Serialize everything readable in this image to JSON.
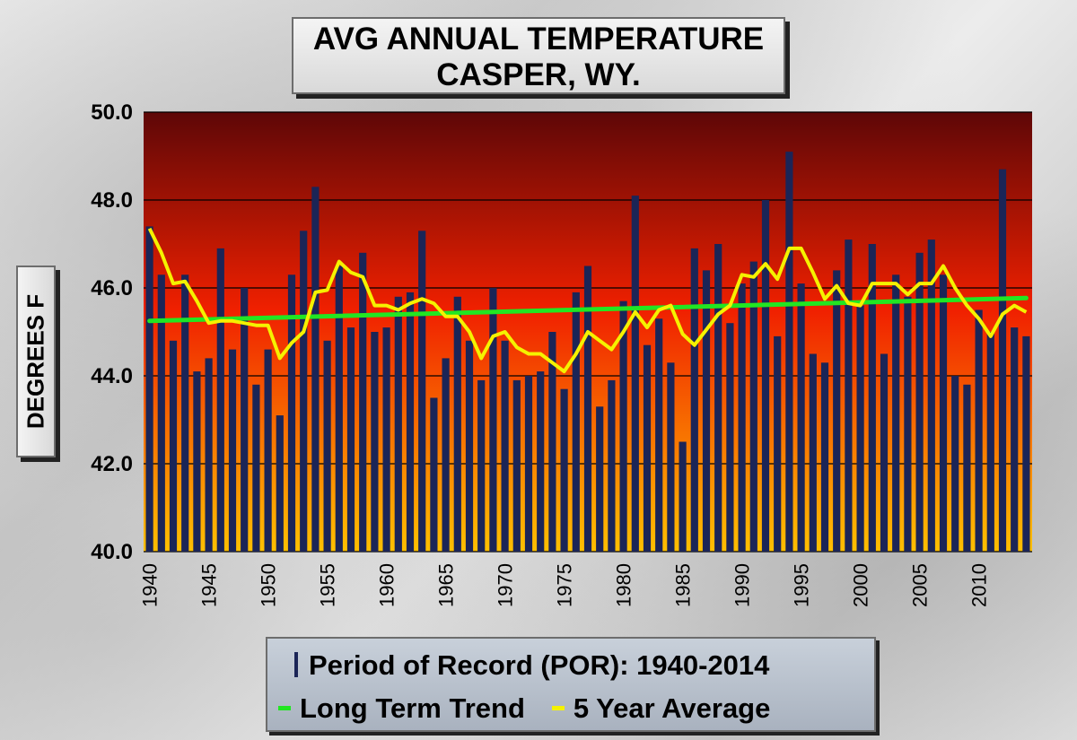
{
  "title": {
    "line1": "AVG ANNUAL  TEMPERATURE",
    "line2": "CASPER, WY."
  },
  "colors": {
    "bar": "#1b2557",
    "trend": "#22e622",
    "avg": "#f5f200",
    "plot_top": "#5e0707",
    "plot_mid": "#f02000",
    "plot_bottom": "#ffc000"
  },
  "legend": {
    "bars": "Period of Record (POR):  1940-2014",
    "trend": "Long Term  Trend",
    "avg": "5 Year Average"
  },
  "chart_data": {
    "type": "bar",
    "title": "AVG ANNUAL  TEMPERATURE CASPER, WY.",
    "ylabel": "DEGREES F",
    "xlabel": "",
    "ylim": [
      40,
      50
    ],
    "yticks": [
      "40.0",
      "42.0",
      "44.0",
      "46.0",
      "48.0",
      "50.0"
    ],
    "xticks": [
      "1940",
      "1945",
      "1950",
      "1955",
      "1960",
      "1965",
      "1970",
      "1975",
      "1980",
      "1985",
      "1990",
      "1995",
      "2000",
      "2005",
      "2010"
    ],
    "grid": true,
    "legend_position": "bottom",
    "x": [
      1940,
      1941,
      1942,
      1943,
      1944,
      1945,
      1946,
      1947,
      1948,
      1949,
      1950,
      1951,
      1952,
      1953,
      1954,
      1955,
      1956,
      1957,
      1958,
      1959,
      1960,
      1961,
      1962,
      1963,
      1964,
      1965,
      1966,
      1967,
      1968,
      1969,
      1970,
      1971,
      1972,
      1973,
      1974,
      1975,
      1976,
      1977,
      1978,
      1979,
      1980,
      1981,
      1982,
      1983,
      1984,
      1985,
      1986,
      1987,
      1988,
      1989,
      1990,
      1991,
      1992,
      1993,
      1994,
      1995,
      1996,
      1997,
      1998,
      1999,
      2000,
      2001,
      2002,
      2003,
      2004,
      2005,
      2006,
      2007,
      2008,
      2009,
      2010,
      2011,
      2012,
      2013,
      2014
    ],
    "series": [
      {
        "name": "Period of Record (POR):  1940-2014",
        "type": "bar",
        "values": [
          47.4,
          46.3,
          44.8,
          46.3,
          44.1,
          44.4,
          46.9,
          44.6,
          46.0,
          43.8,
          44.6,
          43.1,
          46.3,
          47.3,
          48.3,
          44.8,
          46.5,
          45.1,
          46.8,
          45.0,
          45.1,
          45.8,
          45.9,
          47.3,
          43.5,
          44.4,
          45.8,
          44.8,
          43.9,
          46.0,
          44.8,
          43.9,
          44.0,
          44.1,
          45.0,
          43.7,
          45.9,
          46.5,
          43.3,
          43.9,
          45.7,
          48.1,
          44.7,
          45.3,
          44.3,
          42.5,
          46.9,
          46.4,
          47.0,
          45.2,
          46.1,
          46.6,
          48.0,
          44.9,
          49.1,
          46.1,
          44.5,
          44.3,
          46.4,
          47.1,
          45.6,
          47.0,
          44.5,
          46.3,
          45.8,
          46.8,
          47.1,
          46.3,
          44.0,
          43.8,
          45.5,
          45.0,
          48.7,
          45.1,
          44.9
        ]
      },
      {
        "name": "Long Term  Trend",
        "type": "line",
        "values_endpoints": [
          45.25,
          45.77
        ]
      },
      {
        "name": "5 Year Average",
        "type": "line",
        "values": [
          47.35,
          46.8,
          46.1,
          46.15,
          45.7,
          45.2,
          45.25,
          45.25,
          45.2,
          45.15,
          45.15,
          44.4,
          44.75,
          45.0,
          45.9,
          45.95,
          46.6,
          46.35,
          46.25,
          45.6,
          45.6,
          45.5,
          45.65,
          45.75,
          45.65,
          45.35,
          45.35,
          45.0,
          44.4,
          44.9,
          45.0,
          44.65,
          44.5,
          44.5,
          44.3,
          44.1,
          44.5,
          45.0,
          44.8,
          44.6,
          45.0,
          45.45,
          45.1,
          45.5,
          45.6,
          44.95,
          44.7,
          45.05,
          45.4,
          45.6,
          46.3,
          46.25,
          46.55,
          46.2,
          46.9,
          46.9,
          46.35,
          45.75,
          46.05,
          45.65,
          45.6,
          46.1,
          46.1,
          46.1,
          45.85,
          46.1,
          46.1,
          46.5,
          46.0,
          45.6,
          45.3,
          44.9,
          45.4,
          45.6,
          45.45
        ]
      }
    ]
  }
}
